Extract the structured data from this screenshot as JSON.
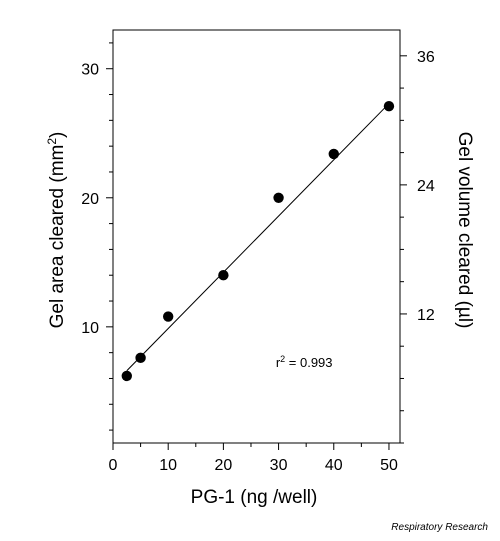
{
  "chart_data": {
    "type": "scatter",
    "x": [
      2.5,
      5,
      10,
      20,
      30,
      40,
      50
    ],
    "y": [
      6.2,
      7.6,
      10.8,
      14.0,
      20.0,
      23.4,
      27.1
    ],
    "xlabel": "PG-1 (ng /well)",
    "ylabel": {
      "main": "Gel area cleared (mm",
      "sup": "2",
      "end": ")"
    },
    "y2label": "Gel volume cleared (µl)",
    "xlim": [
      0,
      52
    ],
    "ylim": [
      1,
      33
    ],
    "y2lim": [
      0,
      38.4
    ],
    "xticks": [
      "0",
      "10",
      "20",
      "30",
      "40",
      "50"
    ],
    "yticks": [
      "10",
      "20",
      "30"
    ],
    "y2ticks": [
      "12",
      "24",
      "36"
    ],
    "fit_line": {
      "x": [
        2.5,
        50
      ],
      "y": [
        6.6,
        27.3
      ]
    },
    "annotation": {
      "r": "r",
      "sup": "2",
      "rest": " = 0.993",
      "x": 29.5,
      "y": 6.9
    },
    "grid": false
  },
  "credit": "Respiratory Research"
}
